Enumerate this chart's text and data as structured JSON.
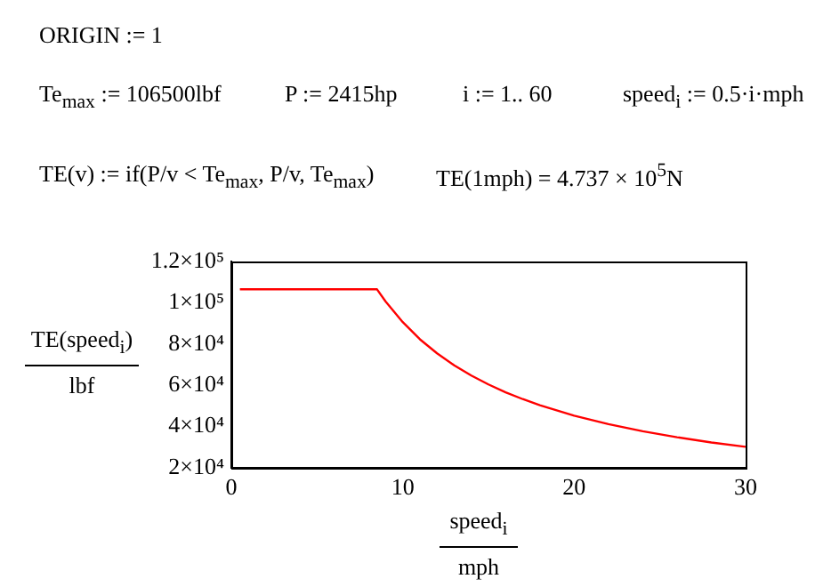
{
  "chart_data": {
    "type": "line",
    "annotations": [
      "ORIGIN := 1",
      "Te$_{max}$ := 106500lbf",
      "P := 2415hp",
      "i := 1.. 60",
      "speed$_{i}$ := 0.5·i·mph",
      "TE(v) := if(P/v < Te$_{max}$, P/v, Te$_{max}$)",
      "TE(1mph) = 4.737 × 10$^{5}$N"
    ],
    "xlabel": "speed$_{i}$\nmph",
    "ylabel": "TE(speed$_{i}$)\nlbf",
    "x": [
      0.5,
      8.5,
      9,
      10,
      11,
      12,
      13,
      14,
      15,
      16,
      17,
      18,
      20,
      22,
      24,
      26,
      28,
      30
    ],
    "series": [
      {
        "color": "#ff0000",
        "values": [
          106500,
          106500,
          100600,
          90600,
          82300,
          75500,
          69700,
          64700,
          60400,
          56600,
          53300,
          50300,
          45300,
          41200,
          37700,
          34800,
          32300,
          30200
        ]
      }
    ],
    "xlim": [
      0,
      30
    ],
    "xticks": [
      0,
      10,
      20,
      30
    ],
    "ylim": [
      20000,
      120000
    ],
    "yticks": [
      {
        "value": 20000,
        "label": "2×10⁴"
      },
      {
        "value": 40000,
        "label": "4×10⁴"
      },
      {
        "value": 60000,
        "label": "6×10⁴"
      },
      {
        "value": 80000,
        "label": "8×10⁴"
      },
      {
        "value": 100000,
        "label": "1×10⁵"
      },
      {
        "value": 120000,
        "label": "1.2×10⁵"
      }
    ],
    "grid": false,
    "marker": "none",
    "line_style": "solid"
  }
}
